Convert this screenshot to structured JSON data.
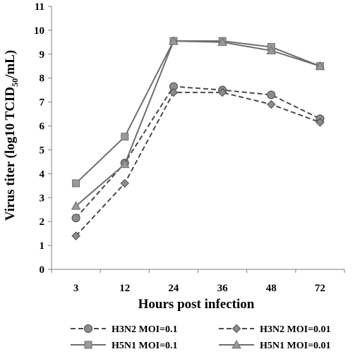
{
  "chart_data": {
    "type": "line",
    "title": "",
    "xlabel": "Hours post infection",
    "ylabel_prefix": "Virus  titer (log10 TCID",
    "ylabel_sub": "50",
    "ylabel_suffix": "/mL)",
    "categories": [
      "3",
      "12",
      "24",
      "36",
      "48",
      "72"
    ],
    "ylim": [
      0,
      11
    ],
    "yticks": [
      "0",
      "1",
      "2",
      "3",
      "4",
      "5",
      "6",
      "7",
      "8",
      "9",
      "10",
      "11"
    ],
    "grid": false,
    "legend_position": "bottom",
    "series": [
      {
        "name": "H3N2 MOI=0.1",
        "values": [
          2.15,
          4.45,
          7.65,
          7.5,
          7.3,
          6.3
        ],
        "marker": "circle",
        "dash": true,
        "color": "#4a4a4a",
        "fill": "#8c8c8c"
      },
      {
        "name": "H3N2 MOI=0.01",
        "values": [
          1.4,
          3.6,
          7.4,
          7.4,
          6.9,
          6.15
        ],
        "marker": "diamond",
        "dash": true,
        "color": "#4a4a4a",
        "fill": "#8c8c8c"
      },
      {
        "name": "H5N1 MOI=0.1",
        "values": [
          3.6,
          5.55,
          9.55,
          9.55,
          9.3,
          8.5
        ],
        "marker": "square",
        "dash": false,
        "color": "#6e6e6e",
        "fill": "#999999"
      },
      {
        "name": "H5N1 MOI=0.01",
        "values": [
          2.65,
          4.4,
          9.55,
          9.5,
          9.15,
          8.5
        ],
        "marker": "triangle",
        "dash": false,
        "color": "#6e6e6e",
        "fill": "#999999"
      }
    ]
  }
}
